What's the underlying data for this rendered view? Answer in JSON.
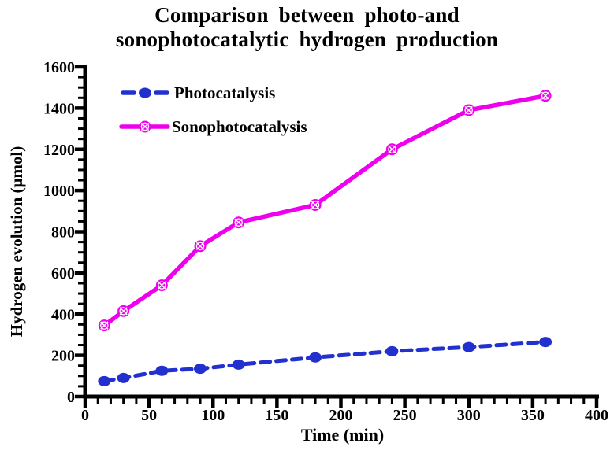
{
  "title": {
    "line1": "Comparison between photo-and",
    "line2": "sonophotocatalytic hydrogen production"
  },
  "chart_data": {
    "type": "line",
    "title": "Comparison between photo-and sonophotocatalytic hydrogen production",
    "xlabel": "Time (min)",
    "ylabel": "Hydrogen evolution (μmol)",
    "x": [
      15,
      30,
      60,
      90,
      120,
      180,
      240,
      300,
      360
    ],
    "series": [
      {
        "name": "Photocatalysis",
        "values": [
          75,
          90,
          125,
          135,
          155,
          190,
          220,
          240,
          265
        ],
        "color": "#2230cf",
        "line_style": "dashed",
        "marker": "filled-circle"
      },
      {
        "name": "Sonophotocatalysis",
        "values": [
          345,
          415,
          540,
          730,
          845,
          930,
          1200,
          1390,
          1460
        ],
        "color": "#ee00ee",
        "line_style": "solid",
        "marker": "circle-x"
      }
    ],
    "xlim": [
      0,
      400
    ],
    "ylim": [
      0,
      1600
    ],
    "x_major_ticks": [
      0,
      50,
      100,
      150,
      200,
      250,
      300,
      350,
      400
    ],
    "y_major_ticks": [
      0,
      200,
      400,
      600,
      800,
      1000,
      1200,
      1400,
      1600
    ],
    "x_minor_step": 10,
    "y_minor_step": 50,
    "grid": false,
    "legend_position": "upper-left",
    "axis_color": "#000000",
    "text_color": "#000000",
    "background_color": "#ffffff"
  }
}
